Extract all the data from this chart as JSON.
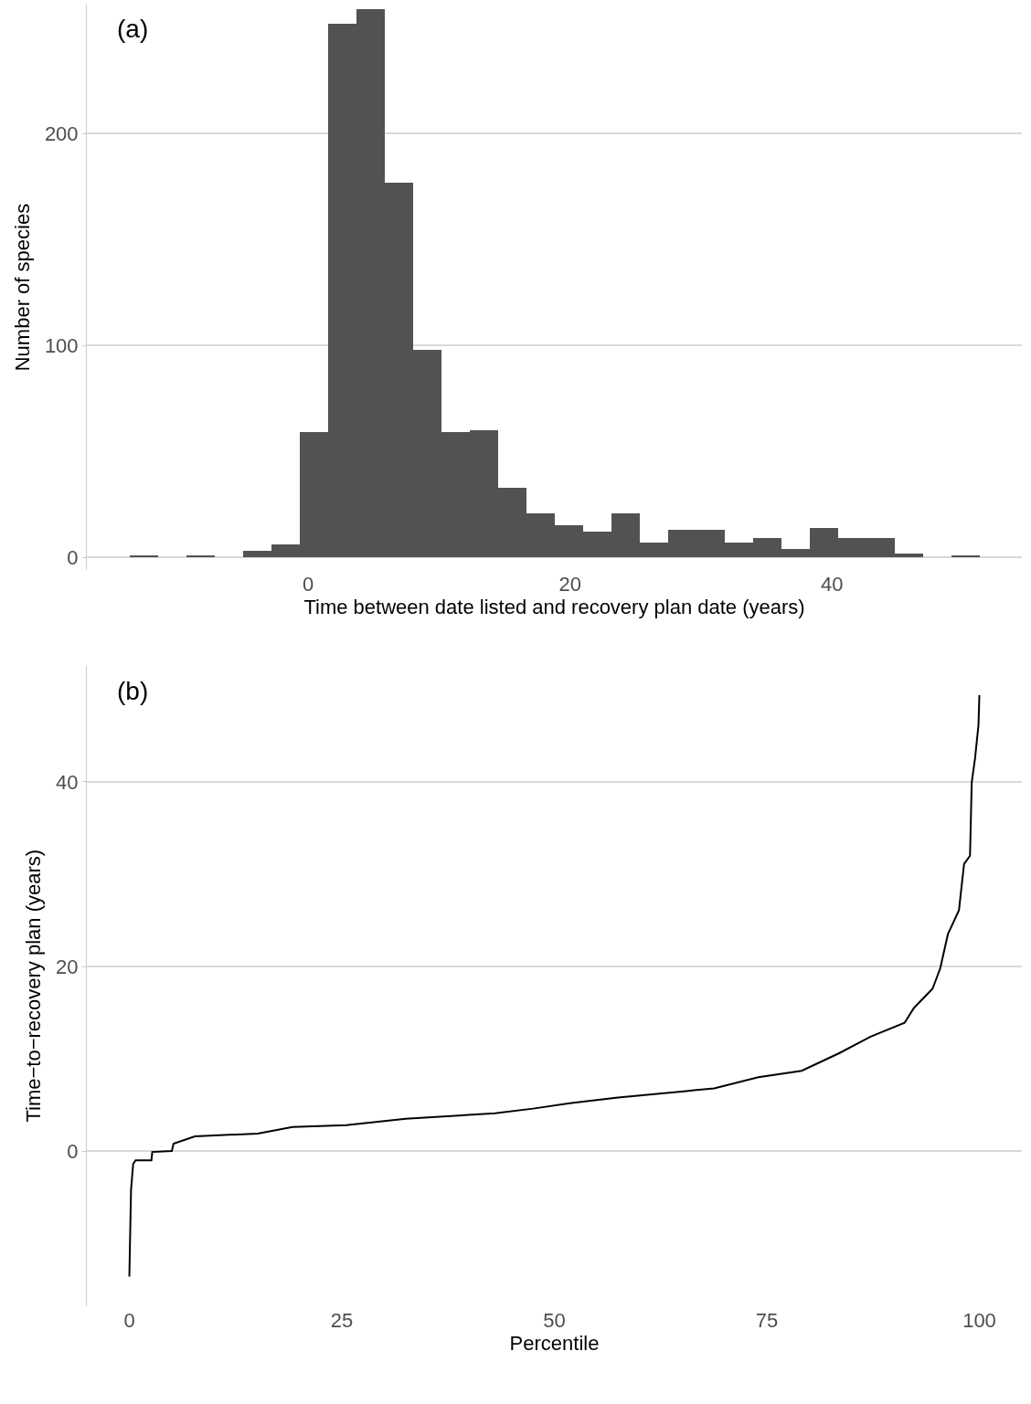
{
  "chart_data": [
    {
      "type": "histogram",
      "xlabel": "Time between date listed and recovery plan date (years)",
      "ylabel": "Number of species",
      "annotations": [
        "(a)"
      ],
      "bins": [
        -13.65,
        -11.49,
        -9.32,
        -7.16,
        -4.99,
        -2.83,
        -0.66,
        1.51,
        3.67,
        5.84,
        8.0,
        10.17,
        12.33,
        14.5,
        16.66,
        18.83,
        20.99,
        23.16,
        25.32,
        27.49,
        29.65,
        31.82,
        33.98,
        36.15,
        38.31,
        40.48,
        42.64,
        44.81,
        46.97,
        49.14,
        51.3
      ],
      "values": [
        1,
        0,
        1,
        0,
        3,
        6,
        59,
        252,
        259,
        177,
        98,
        59,
        60,
        33,
        21,
        15,
        12,
        21,
        7,
        13,
        13,
        7,
        9,
        4,
        14,
        9,
        9,
        2,
        0,
        1
      ],
      "color": "#515352",
      "xlim": [
        -16.9,
        54.5
      ],
      "ylim": [
        -6,
        261
      ],
      "xticks": [
        0,
        20,
        40
      ],
      "yticks": [
        0,
        100,
        200
      ],
      "grid": "y"
    },
    {
      "type": "line",
      "xlabel": "Percentile",
      "ylabel": "Time−to−recovery plan (years)",
      "annotations": [
        "(b)"
      ],
      "x": [
        0,
        0.2,
        0.45,
        0.73,
        2.6,
        2.7,
        5.0,
        5.2,
        7.7,
        15.1,
        19.2,
        25.5,
        32.5,
        43.0,
        47.5,
        52.0,
        57.5,
        65.5,
        68.8,
        74.0,
        79.1,
        83.5,
        87.2,
        91.2,
        92.3,
        94.5,
        95.4,
        96.3,
        97.6,
        98.2,
        98.9,
        99.1,
        99.5,
        99.9,
        100
      ],
      "series": [
        {
          "color": "#000000",
          "values": [
            -13.6,
            -4.2,
            -1.4,
            -1.0,
            -1.0,
            -0.1,
            0.0,
            0.8,
            1.6,
            1.9,
            2.6,
            2.8,
            3.5,
            4.1,
            4.6,
            5.2,
            5.8,
            6.5,
            6.8,
            8.0,
            8.7,
            10.6,
            12.4,
            13.9,
            15.5,
            17.6,
            19.8,
            23.5,
            26.1,
            31.1,
            32.0,
            39.9,
            42.6,
            46.2,
            49.4
          ]
        }
      ],
      "xlim": [
        -5,
        105
      ],
      "ylim": [
        -16.8,
        52.6
      ],
      "xticks": [
        0,
        25,
        50,
        75,
        100
      ],
      "yticks": [
        0,
        20,
        40
      ],
      "grid": "y",
      "marker": "none",
      "line_style": "solid"
    }
  ]
}
